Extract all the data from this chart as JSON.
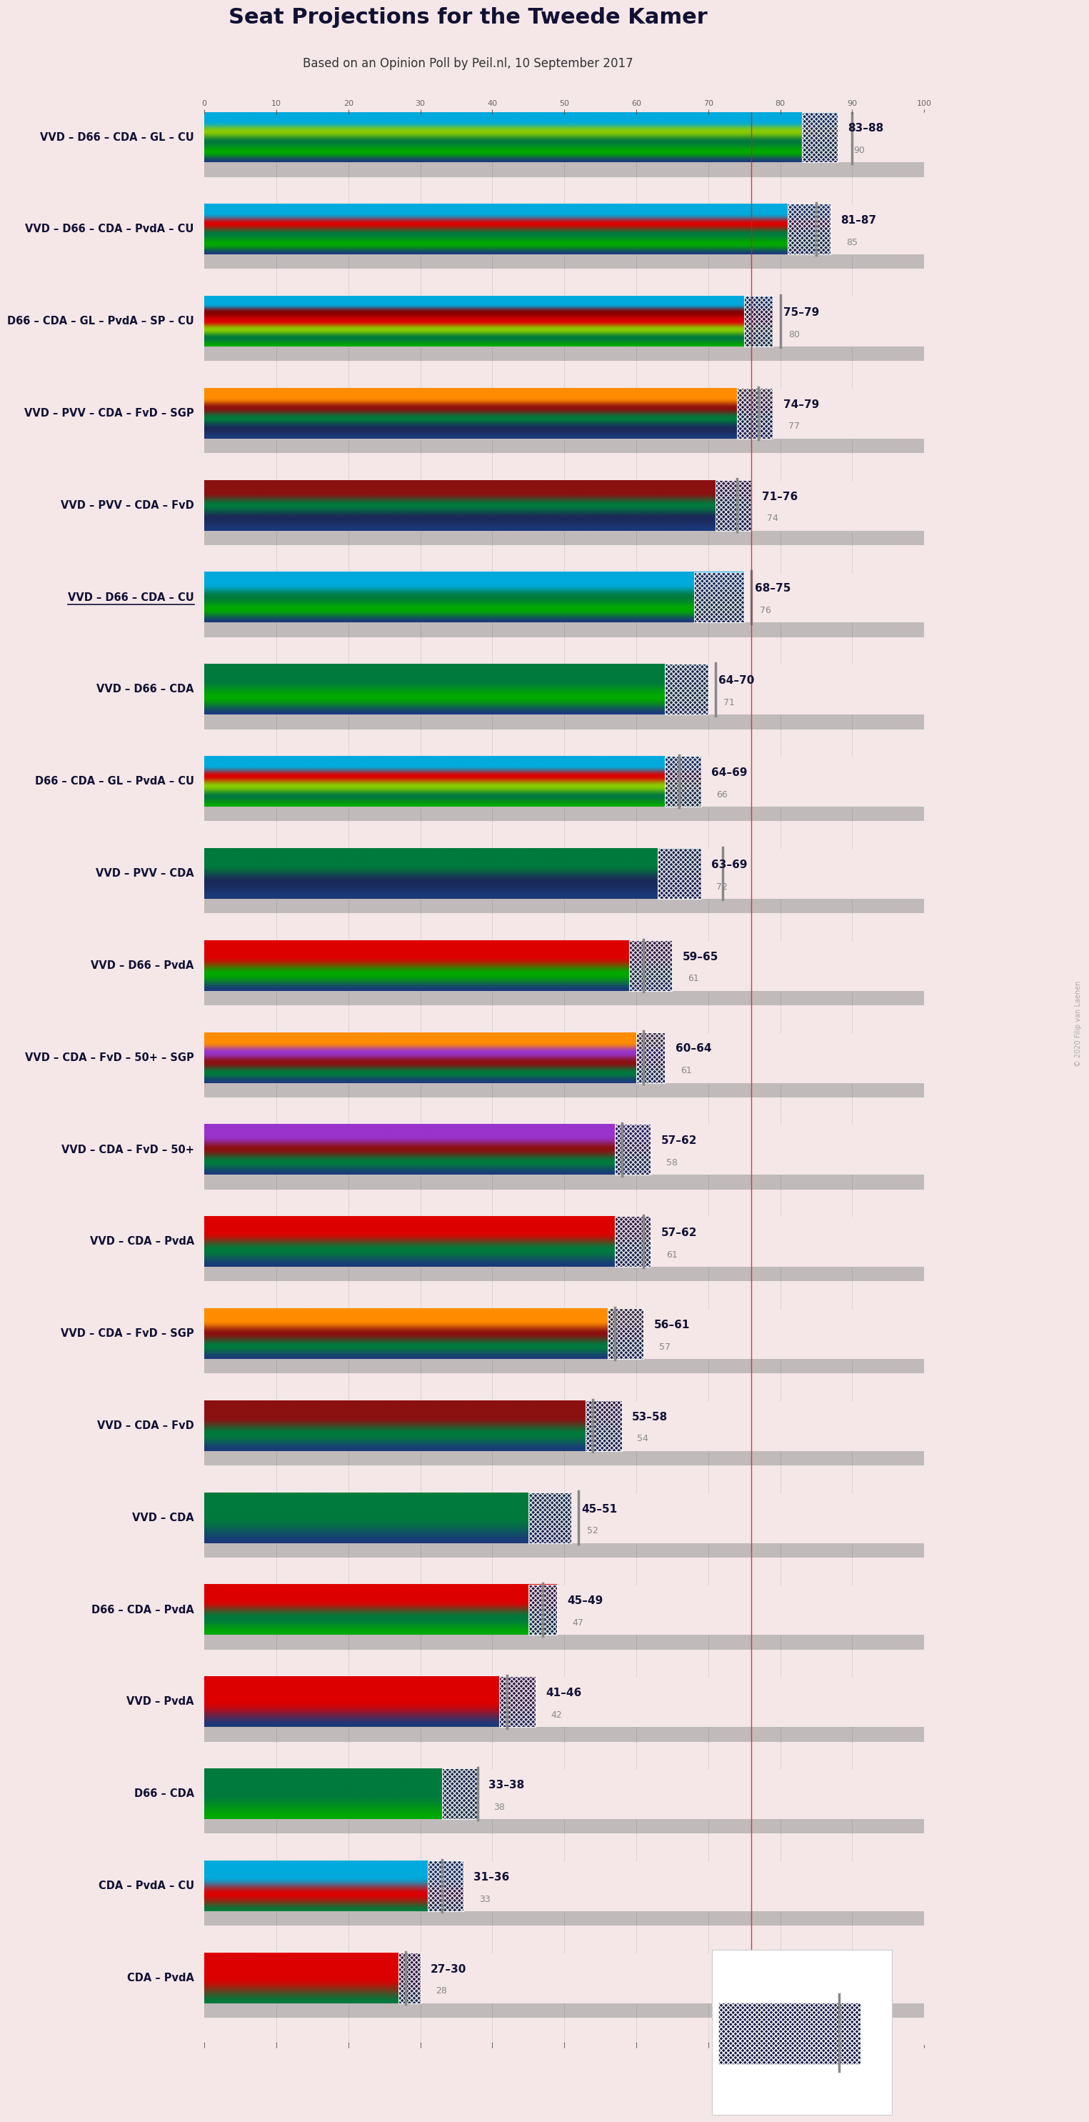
{
  "title": "Seat Projections for the Tweede Kamer",
  "subtitle": "Based on an Opinion Poll by Peil.nl, 10 September 2017",
  "background_color": "#f5e6e8",
  "majority_line": 76,
  "x_max": 100,
  "coalitions": [
    {
      "label": "VVD – D66 – CDA – GL – CU",
      "underline": false,
      "ci_low": 83,
      "ci_high": 88,
      "last": 90,
      "parties": [
        "VVD",
        "D66",
        "CDA",
        "GL",
        "CU"
      ]
    },
    {
      "label": "VVD – D66 – CDA – PvdA – CU",
      "underline": false,
      "ci_low": 81,
      "ci_high": 87,
      "last": 85,
      "parties": [
        "VVD",
        "D66",
        "CDA",
        "PvdA",
        "CU"
      ]
    },
    {
      "label": "D66 – CDA – GL – PvdA – SP – CU",
      "underline": false,
      "ci_low": 75,
      "ci_high": 79,
      "last": 80,
      "parties": [
        "D66",
        "CDA",
        "GL",
        "PvdA",
        "SP",
        "CU"
      ]
    },
    {
      "label": "VVD – PVV – CDA – FvD – SGP",
      "underline": false,
      "ci_low": 74,
      "ci_high": 79,
      "last": 77,
      "parties": [
        "VVD",
        "PVV",
        "CDA",
        "FvD",
        "SGP"
      ]
    },
    {
      "label": "VVD – PVV – CDA – FvD",
      "underline": false,
      "ci_low": 71,
      "ci_high": 76,
      "last": 74,
      "parties": [
        "VVD",
        "PVV",
        "CDA",
        "FvD"
      ]
    },
    {
      "label": "VVD – D66 – CDA – CU",
      "underline": true,
      "ci_low": 68,
      "ci_high": 75,
      "last": 76,
      "parties": [
        "VVD",
        "D66",
        "CDA",
        "CU"
      ]
    },
    {
      "label": "VVD – D66 – CDA",
      "underline": false,
      "ci_low": 64,
      "ci_high": 70,
      "last": 71,
      "parties": [
        "VVD",
        "D66",
        "CDA"
      ]
    },
    {
      "label": "D66 – CDA – GL – PvdA – CU",
      "underline": false,
      "ci_low": 64,
      "ci_high": 69,
      "last": 66,
      "parties": [
        "D66",
        "CDA",
        "GL",
        "PvdA",
        "CU"
      ]
    },
    {
      "label": "VVD – PVV – CDA",
      "underline": false,
      "ci_low": 63,
      "ci_high": 69,
      "last": 72,
      "parties": [
        "VVD",
        "PVV",
        "CDA"
      ]
    },
    {
      "label": "VVD – D66 – PvdA",
      "underline": false,
      "ci_low": 59,
      "ci_high": 65,
      "last": 61,
      "parties": [
        "VVD",
        "D66",
        "PvdA"
      ]
    },
    {
      "label": "VVD – CDA – FvD – 50+ – SGP",
      "underline": false,
      "ci_low": 60,
      "ci_high": 64,
      "last": 61,
      "parties": [
        "VVD",
        "CDA",
        "FvD",
        "50+",
        "SGP"
      ]
    },
    {
      "label": "VVD – CDA – FvD – 50+",
      "underline": false,
      "ci_low": 57,
      "ci_high": 62,
      "last": 58,
      "parties": [
        "VVD",
        "CDA",
        "FvD",
        "50+"
      ]
    },
    {
      "label": "VVD – CDA – PvdA",
      "underline": false,
      "ci_low": 57,
      "ci_high": 62,
      "last": 61,
      "parties": [
        "VVD",
        "CDA",
        "PvdA"
      ]
    },
    {
      "label": "VVD – CDA – FvD – SGP",
      "underline": false,
      "ci_low": 56,
      "ci_high": 61,
      "last": 57,
      "parties": [
        "VVD",
        "CDA",
        "FvD",
        "SGP"
      ]
    },
    {
      "label": "VVD – CDA – FvD",
      "underline": false,
      "ci_low": 53,
      "ci_high": 58,
      "last": 54,
      "parties": [
        "VVD",
        "CDA",
        "FvD"
      ]
    },
    {
      "label": "VVD – CDA",
      "underline": false,
      "ci_low": 45,
      "ci_high": 51,
      "last": 52,
      "parties": [
        "VVD",
        "CDA"
      ]
    },
    {
      "label": "D66 – CDA – PvdA",
      "underline": false,
      "ci_low": 45,
      "ci_high": 49,
      "last": 47,
      "parties": [
        "D66",
        "CDA",
        "PvdA"
      ]
    },
    {
      "label": "VVD – PvdA",
      "underline": false,
      "ci_low": 41,
      "ci_high": 46,
      "last": 42,
      "parties": [
        "VVD",
        "PvdA"
      ]
    },
    {
      "label": "D66 – CDA",
      "underline": false,
      "ci_low": 33,
      "ci_high": 38,
      "last": 38,
      "parties": [
        "D66",
        "CDA"
      ]
    },
    {
      "label": "CDA – PvdA – CU",
      "underline": false,
      "ci_low": 31,
      "ci_high": 36,
      "last": 33,
      "parties": [
        "CDA",
        "PvdA",
        "CU"
      ]
    },
    {
      "label": "CDA – PvdA",
      "underline": false,
      "ci_low": 27,
      "ci_high": 30,
      "last": 28,
      "parties": [
        "CDA",
        "PvdA"
      ]
    }
  ],
  "party_colors": {
    "VVD": "#1a3a7a",
    "D66": "#00aa00",
    "CDA": "#007a3d",
    "GL": "#88cc00",
    "CU": "#00aadd",
    "PvdA": "#dd0000",
    "SP": "#880000",
    "PVV": "#1a2a5a",
    "FvD": "#8B1010",
    "SGP": "#FF8C00",
    "50+": "#9933cc"
  },
  "ci_color": "#1a1a4a",
  "last_color": "#888888",
  "majority_color": "#cc2222",
  "gap_top_color": "#b0b0b0",
  "gap_bottom_color": "#f0e8e8",
  "copyright": "© 2020 Filip van Laenen",
  "x_ticks": [
    0,
    10,
    20,
    30,
    40,
    50,
    60,
    70,
    80,
    90,
    100
  ]
}
